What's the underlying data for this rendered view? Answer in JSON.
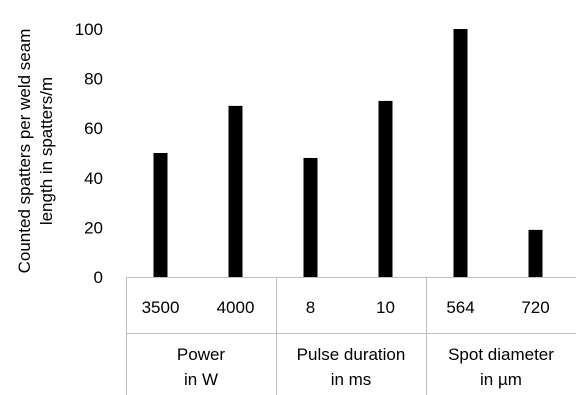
{
  "chart_data": {
    "type": "bar",
    "ylabel_lines": [
      "Counted spatters per weld seam",
      "length in spatters/m"
    ],
    "ylim": [
      0,
      100
    ],
    "yticks": [
      0,
      20,
      40,
      60,
      80,
      100
    ],
    "grid": false,
    "groups": [
      {
        "label_lines": [
          "Power",
          "in W"
        ],
        "categories": [
          {
            "label": "3500",
            "value": 50
          },
          {
            "label": "4000",
            "value": 69
          }
        ]
      },
      {
        "label_lines": [
          "Pulse duration",
          "in ms"
        ],
        "categories": [
          {
            "label": "8",
            "value": 48
          },
          {
            "label": "10",
            "value": 71
          }
        ]
      },
      {
        "label_lines": [
          "Spot diameter",
          "in µm"
        ],
        "categories": [
          {
            "label": "564",
            "value": 100
          },
          {
            "label": "720",
            "value": 19
          }
        ]
      }
    ],
    "bar_color": "#000000",
    "separator_color": "#bfbfbf"
  }
}
